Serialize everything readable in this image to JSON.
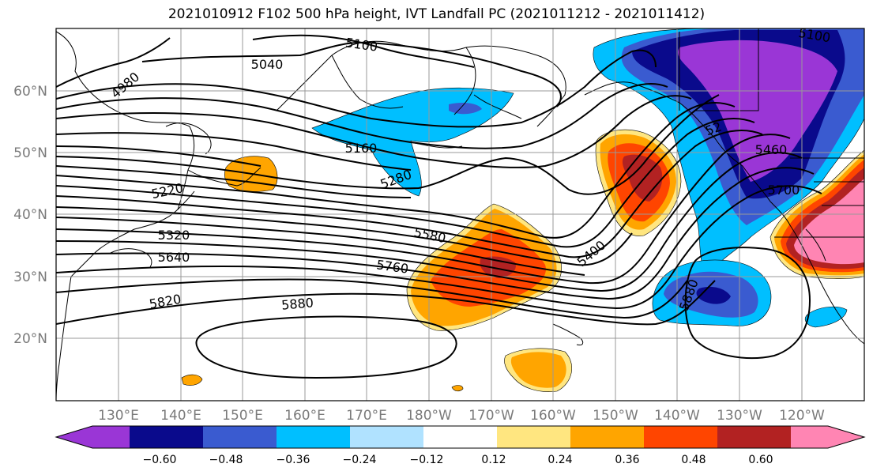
{
  "title": "2021010912 F102 500 hPa height, IVT Landfall PC (2021011212 - 2021011412)",
  "lat_labels": [
    "60°N",
    "50°N",
    "40°N",
    "30°N",
    "20°N"
  ],
  "lon_labels": [
    "130°E",
    "140°E",
    "150°E",
    "160°E",
    "170°E",
    "180°W",
    "170°W",
    "160°W",
    "150°W",
    "140°W",
    "130°W",
    "120°W"
  ],
  "contour_labels": {
    "c4980": "4980",
    "c5040": "5040",
    "c5100a": "5100",
    "c5100b": "5100",
    "c5160": "5160",
    "c5220": "5220",
    "c5280": "5280",
    "c5320": "5320",
    "c5400": "5400",
    "c5460": "5460",
    "c5580": "5580",
    "c5640": "5640",
    "c5700": "5700",
    "c5760": "5760",
    "c5820": "5820",
    "c5880a": "5880",
    "c5880b": "5880",
    "c52x": "52"
  },
  "colorbar": {
    "colors": [
      "#9a36d6",
      "#0a0a8c",
      "#3a5bd0",
      "#00bfff",
      "#b0e2ff",
      "#ffffff",
      "#ffe680",
      "#ffa500",
      "#ff4500",
      "#b22222",
      "#ff85b3"
    ],
    "ticks": [
      "−0.60",
      "−0.48",
      "−0.36",
      "−0.24",
      "−0.12",
      "0.12",
      "0.24",
      "0.36",
      "0.48",
      "0.60"
    ]
  }
}
